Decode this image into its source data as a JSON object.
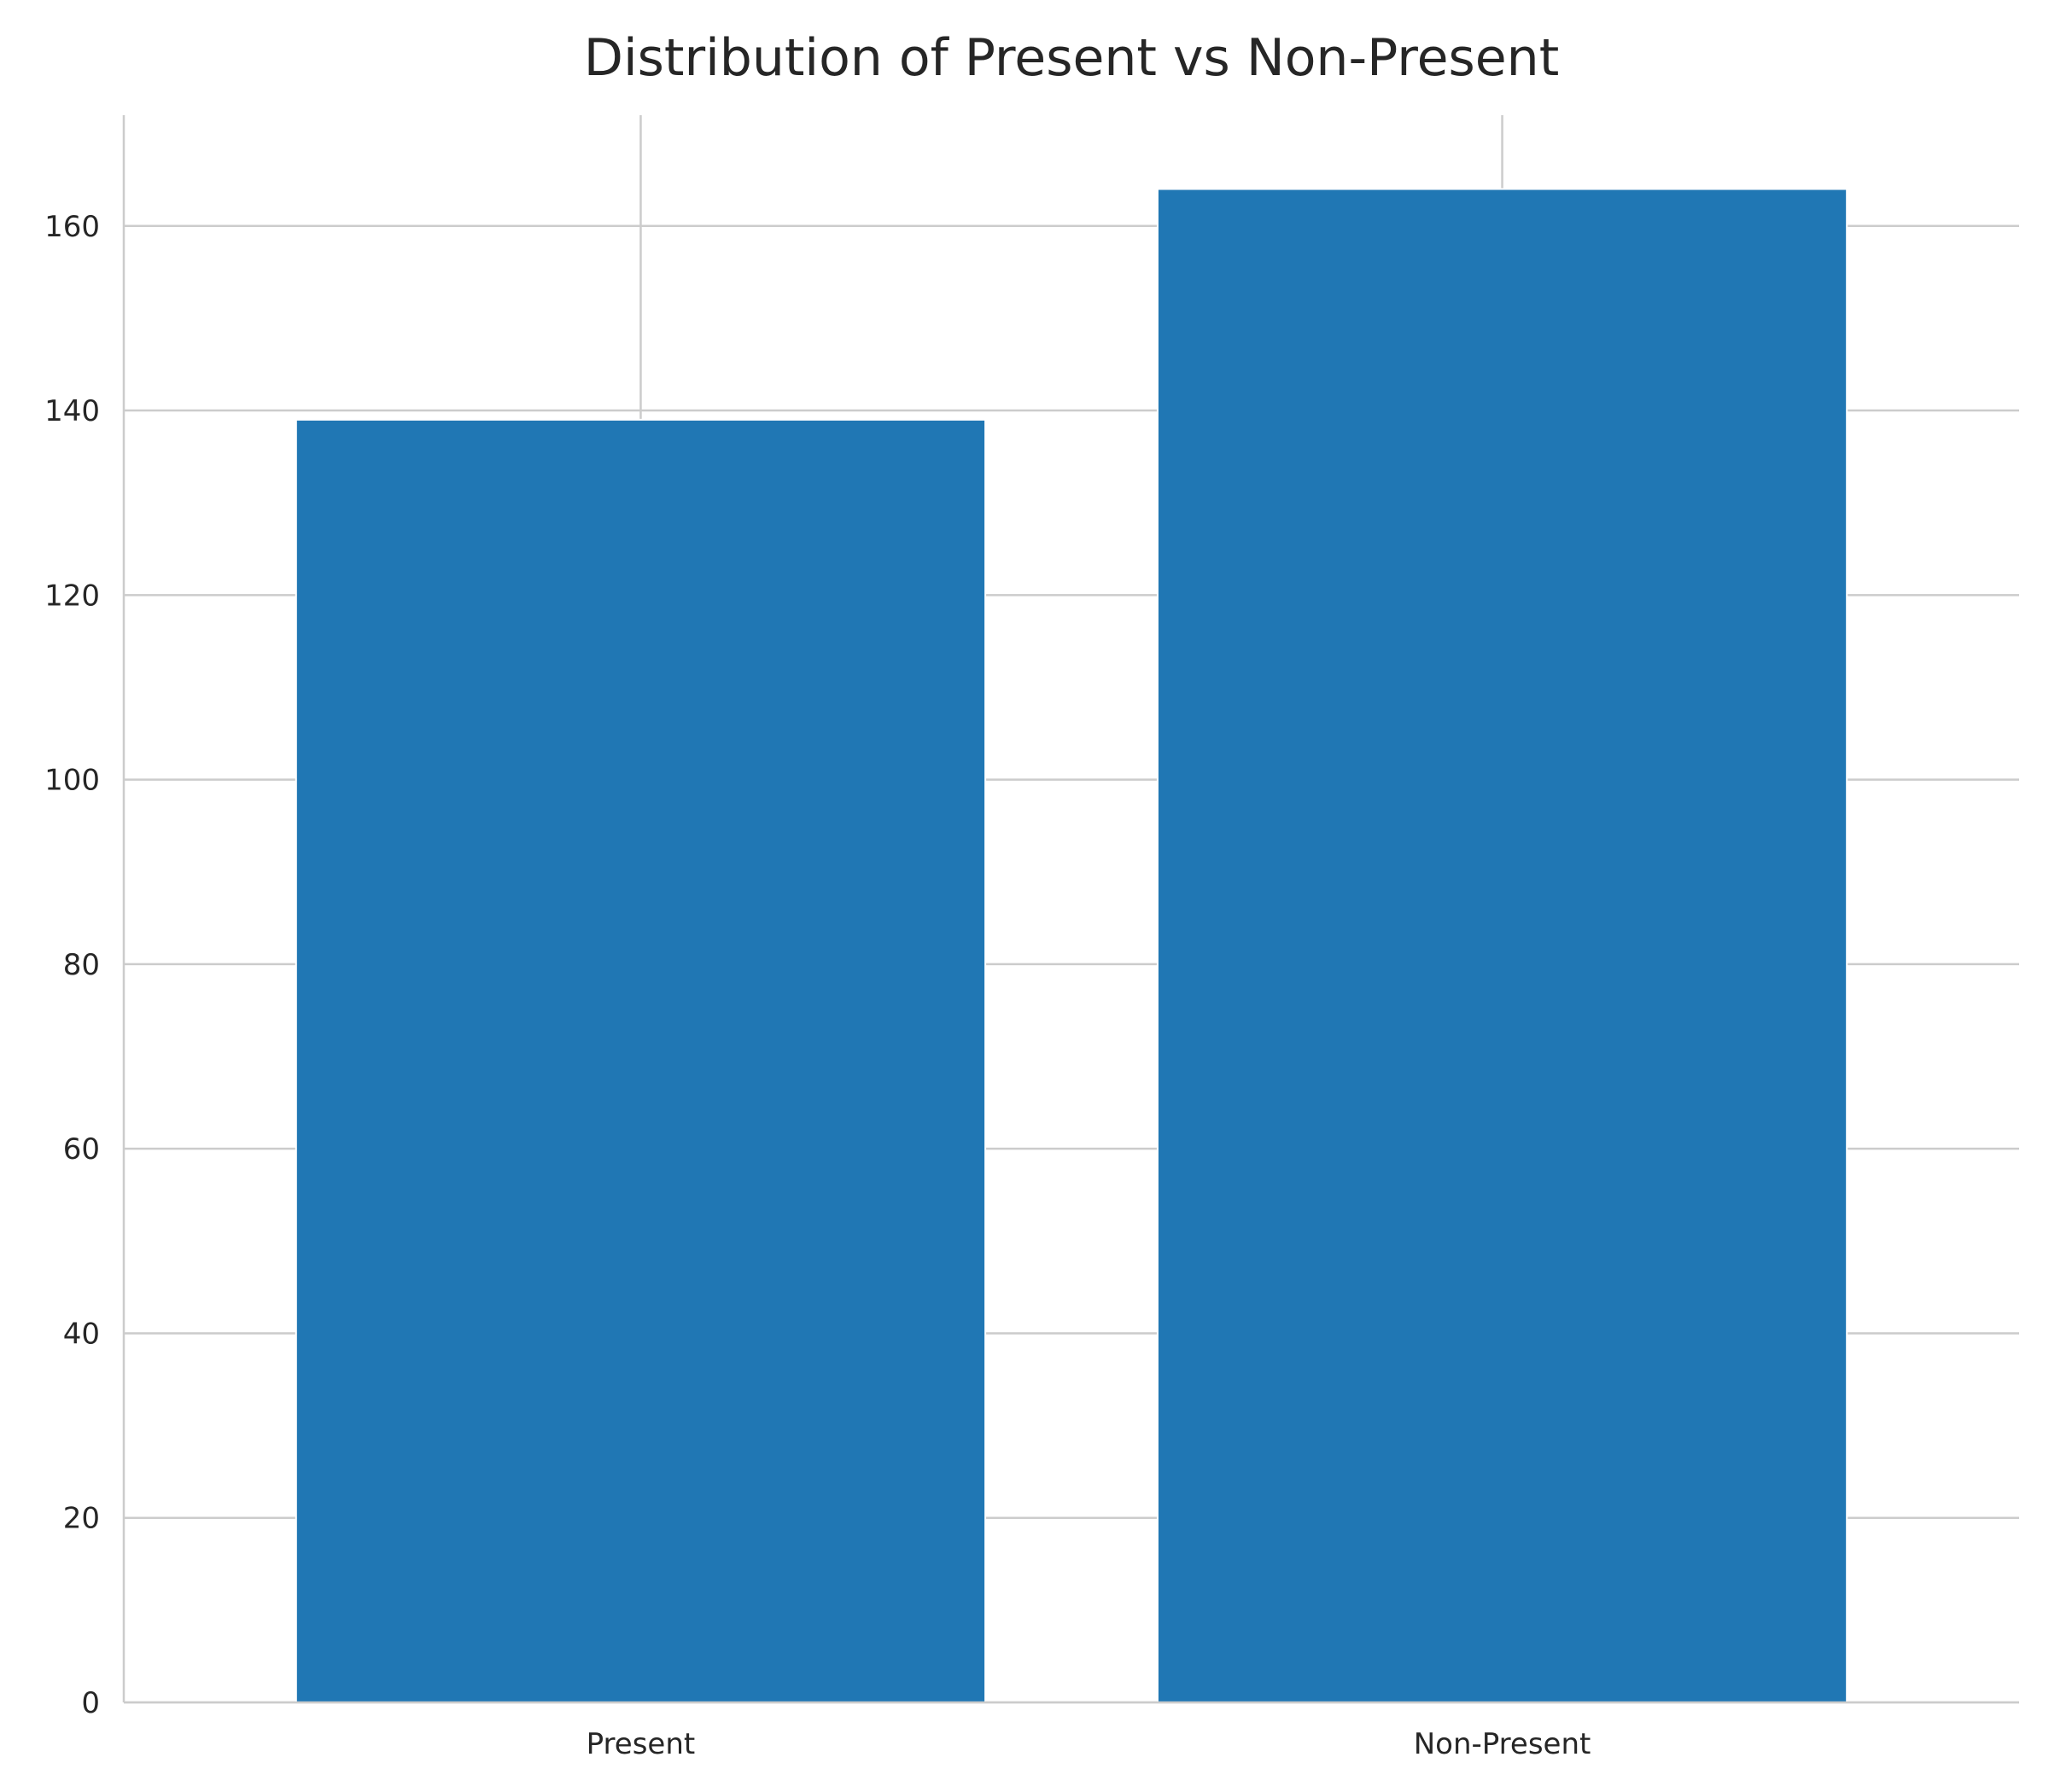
{
  "chart_data": {
    "type": "bar",
    "title": "Distribution of Present vs Non-Present",
    "xlabel": "",
    "ylabel": "",
    "categories": [
      "Present",
      "Non-Present"
    ],
    "values": [
      139,
      164
    ],
    "ylim": [
      0,
      172
    ],
    "yticks": [
      0,
      20,
      40,
      60,
      80,
      100,
      120,
      140,
      160
    ],
    "ytick_labels": [
      "0",
      "20",
      "40",
      "60",
      "80",
      "100",
      "120",
      "140",
      "160"
    ],
    "bar_color": "#2077b4",
    "grid": true,
    "legend": false
  }
}
